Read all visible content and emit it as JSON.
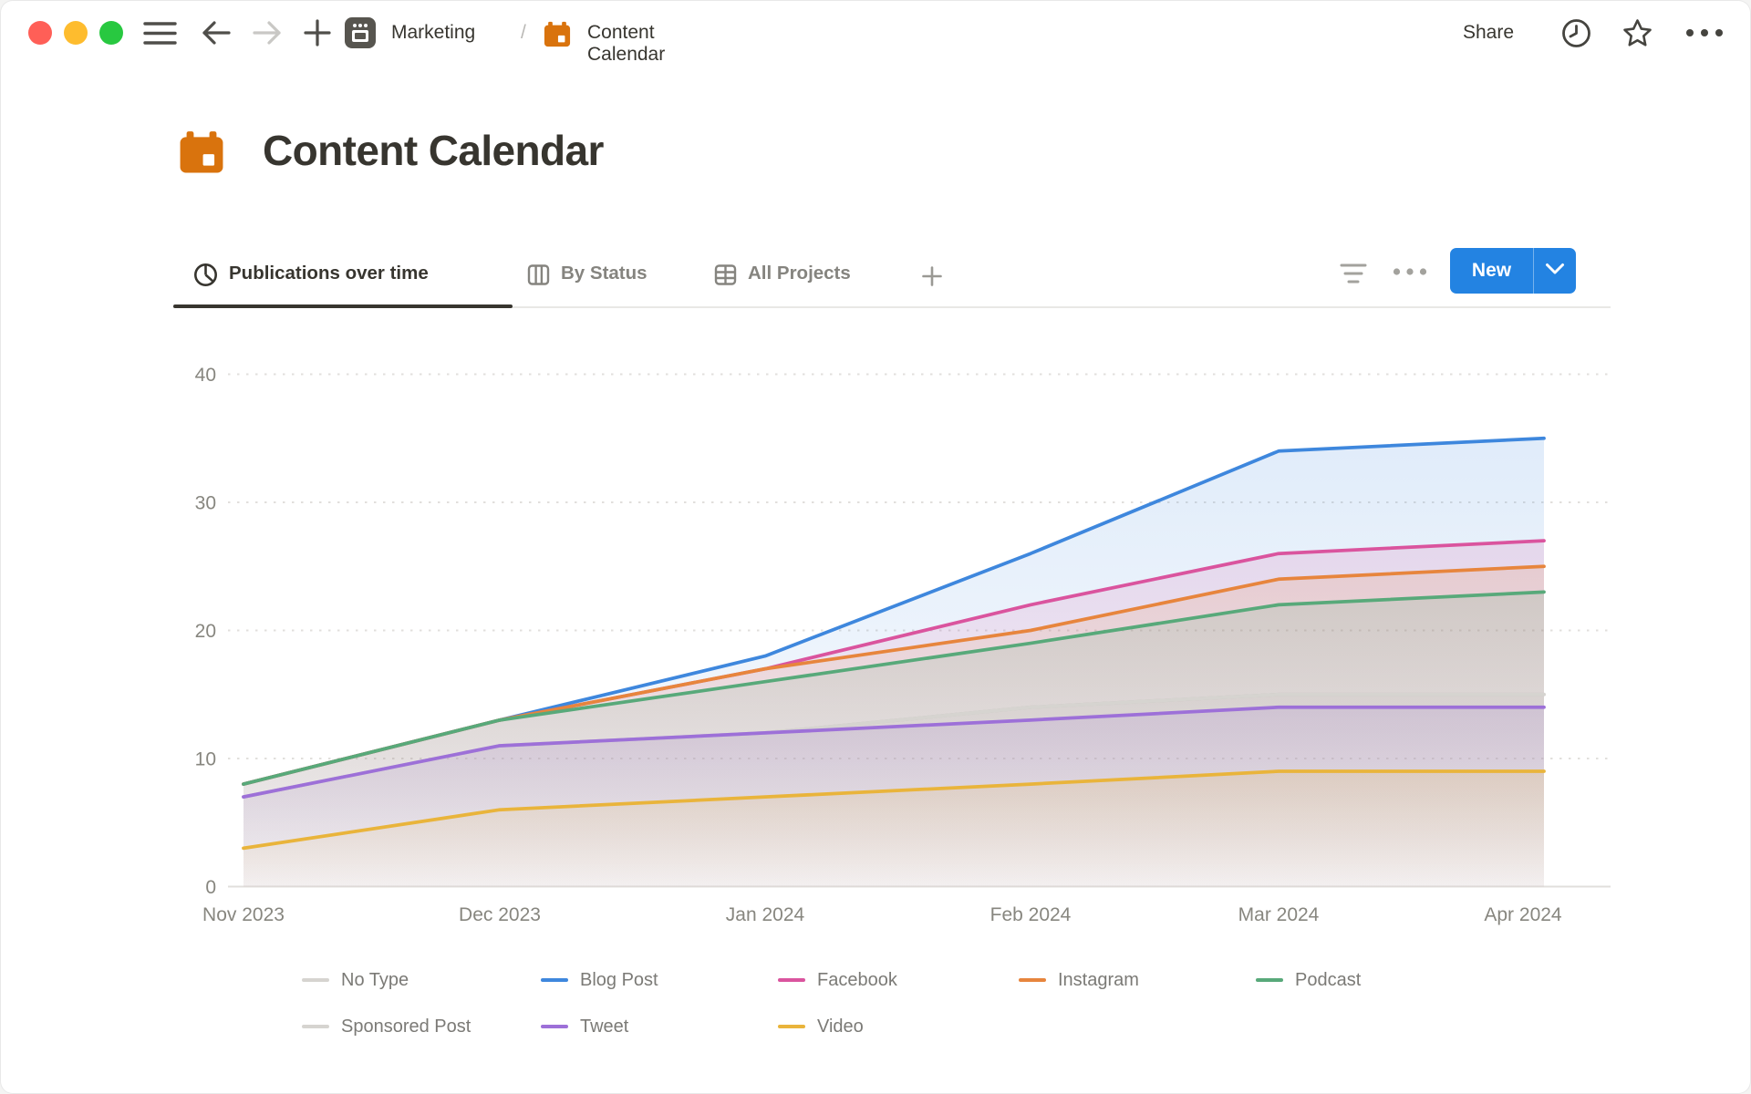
{
  "topbar": {
    "breadcrumb": {
      "workspace_page": "Marketing",
      "separator": "/",
      "current_page": "Content Calendar"
    },
    "share_label": "Share",
    "icons": {
      "left": [
        "close",
        "minimize",
        "zoom",
        "menu",
        "back-arrow",
        "forward-arrow",
        "new-tab-plus",
        "projector-screen",
        "orange-calendar"
      ],
      "right": [
        "history-clock",
        "favorite-star",
        "more-ellipsis"
      ]
    }
  },
  "page": {
    "title": "Content Calendar",
    "icon": "orange-calendar",
    "icon_color": "#d9730d"
  },
  "view_tabs": {
    "tabs": [
      {
        "label": "Publications over time",
        "icon": "pie-chart",
        "active": true
      },
      {
        "label": "By Status",
        "icon": "board-columns",
        "active": false
      },
      {
        "label": "All Projects",
        "icon": "table-grid",
        "active": false
      }
    ],
    "add_view_icon": "plus",
    "controls": {
      "filter_icon": "filter-lines",
      "more_icon": "ellipsis",
      "new_button": {
        "label": "New",
        "has_dropdown": true,
        "color": "#2383e2"
      }
    }
  },
  "chart_data": {
    "type": "line",
    "title": "Publications over time",
    "categories": [
      "Nov 2023",
      "Dec 2023",
      "Jan 2024",
      "Feb 2024",
      "Mar 2024",
      "Apr 2024"
    ],
    "series": [
      {
        "name": "No Type",
        "color": "#d6d4d0",
        "values": [
          7,
          11,
          12,
          14,
          15,
          15
        ]
      },
      {
        "name": "Blog Post",
        "color": "#3e87dd",
        "values": [
          8,
          13,
          18,
          26,
          34,
          35
        ]
      },
      {
        "name": "Facebook",
        "color": "#da549e",
        "values": [
          8,
          13,
          17,
          22,
          26,
          27
        ]
      },
      {
        "name": "Instagram",
        "color": "#e7853d",
        "values": [
          8,
          13,
          17,
          20,
          24,
          25
        ]
      },
      {
        "name": "Podcast",
        "color": "#58a97a",
        "values": [
          8,
          13,
          16,
          19,
          22,
          23
        ]
      },
      {
        "name": "Sponsored Post",
        "color": "#d6d4d0",
        "values": [
          7,
          11,
          12,
          14,
          15,
          15
        ]
      },
      {
        "name": "Tweet",
        "color": "#9d70d8",
        "values": [
          7,
          11,
          12,
          13,
          14,
          14
        ]
      },
      {
        "name": "Video",
        "color": "#e9b43b",
        "values": [
          3,
          6,
          7,
          8,
          9,
          9
        ]
      }
    ],
    "ylim": [
      0,
      40
    ],
    "yticks": [
      0,
      10,
      20,
      30,
      40
    ],
    "grid": "dotted-horizontal",
    "legend_position": "bottom"
  }
}
